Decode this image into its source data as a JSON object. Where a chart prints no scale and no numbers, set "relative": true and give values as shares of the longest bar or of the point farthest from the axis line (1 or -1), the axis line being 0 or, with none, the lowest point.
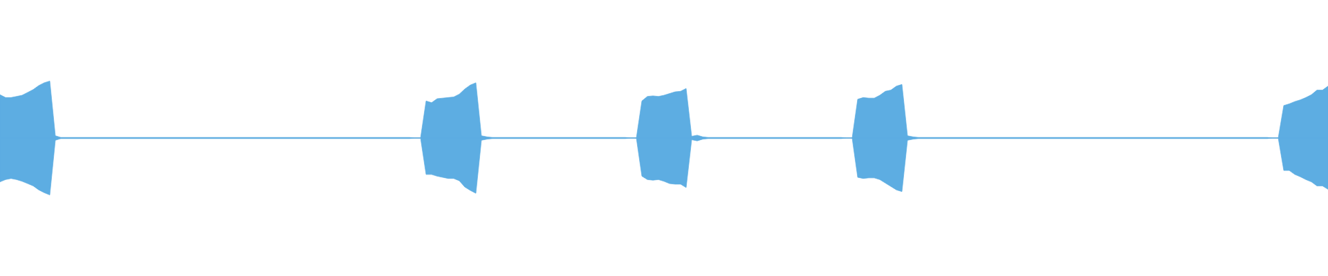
{
  "chart_data": {
    "type": "area",
    "relative": true,
    "categories": [
      null,
      null,
      null,
      null,
      null,
      null,
      null,
      null,
      null,
      null,
      null,
      null,
      null,
      null,
      null,
      null,
      null,
      null,
      null,
      null,
      null,
      null,
      null,
      null,
      null,
      null,
      null,
      null,
      null,
      null,
      null,
      null,
      null,
      null,
      null,
      null,
      null,
      null,
      null,
      null,
      null,
      null,
      null,
      null,
      null,
      null,
      null,
      null,
      null,
      null,
      null,
      null,
      null,
      null,
      null,
      null,
      null,
      null,
      null,
      null,
      null,
      null,
      null,
      null,
      null,
      null,
      null,
      null,
      null,
      null,
      null,
      null,
      null,
      null,
      null,
      null,
      null,
      null,
      null,
      null,
      null,
      null,
      null,
      null,
      null,
      null,
      null,
      null,
      null,
      null,
      null,
      null,
      null,
      null,
      null,
      null,
      null,
      null,
      null,
      null,
      null,
      null,
      null,
      null,
      null,
      null,
      null,
      null,
      null,
      null,
      null,
      null,
      null,
      null,
      null,
      null,
      null,
      null,
      null,
      null,
      null,
      null,
      null,
      null,
      null,
      null,
      null,
      null,
      null,
      null,
      null,
      null,
      null,
      null,
      null,
      null,
      null,
      null,
      null,
      null,
      null,
      null,
      null,
      null,
      null,
      null,
      null,
      null,
      null,
      null,
      null,
      null,
      null,
      null,
      null,
      null,
      null,
      null,
      null,
      null,
      null,
      null,
      null,
      null,
      null,
      null,
      null,
      null,
      null,
      null,
      null,
      null,
      null,
      null,
      null,
      null,
      null,
      null,
      null,
      null,
      null,
      null,
      null,
      null,
      null,
      null,
      null,
      null,
      null,
      null,
      null,
      null,
      null,
      null,
      null,
      null,
      null,
      null,
      null,
      null,
      null,
      null,
      null,
      null,
      null,
      null,
      null,
      null,
      null,
      null,
      null,
      null,
      null,
      null,
      null,
      null,
      null,
      null,
      null,
      null,
      null,
      null,
      null,
      null,
      null,
      null,
      null,
      null,
      null,
      null,
      null,
      null,
      null,
      null,
      null,
      null,
      null,
      null,
      null,
      null,
      null
    ],
    "series": [
      {
        "color": "#5dade2",
        "values": [
          0.76,
          0.71,
          0.71,
          0.73,
          0.75,
          0.8,
          0.85,
          0.92,
          0.97,
          1,
          0.04,
          0.01,
          0.01,
          0.01,
          0.01,
          0.01,
          0.01,
          0.01,
          0.01,
          0.01,
          0.01,
          0.01,
          0.01,
          0.01,
          0.01,
          0.01,
          0.01,
          0.01,
          0.01,
          0.01,
          0.01,
          0.01,
          0.01,
          0.01,
          0.01,
          0.01,
          0.01,
          0.01,
          0.01,
          0.01,
          0.01,
          0.01,
          0.01,
          0.01,
          0.01,
          0.01,
          0.01,
          0.01,
          0.01,
          0.01,
          0.01,
          0.01,
          0.01,
          0.01,
          0.01,
          0.01,
          0.01,
          0.01,
          0.01,
          0.01,
          0.01,
          0.01,
          0.01,
          0.01,
          0.01,
          0.01,
          0.01,
          0.01,
          0.01,
          0.01,
          0.01,
          0.01,
          0.01,
          0.01,
          0.01,
          0,
          0,
          0.65,
          0.62,
          0.69,
          0.7,
          0.71,
          0.72,
          0.77,
          0.86,
          0.93,
          0.97,
          0.04,
          0.02,
          0.01,
          0.01,
          0.01,
          0.01,
          0.01,
          0.01,
          0.01,
          0.01,
          0.01,
          0.01,
          0.01,
          0.01,
          0.01,
          0.01,
          0.01,
          0.01,
          0.01,
          0.01,
          0.01,
          0.01,
          0.01,
          0.01,
          0.01,
          0.01,
          0.01,
          0,
          0,
          0.65,
          0.73,
          0.74,
          0.73,
          0.75,
          0.78,
          0.81,
          0.82,
          0.87,
          0.03,
          0.05,
          0.02,
          0.01,
          0.01,
          0.01,
          0.01,
          0.01,
          0.01,
          0.01,
          0.01,
          0.01,
          0.01,
          0.01,
          0.01,
          0.01,
          0.01,
          0.01,
          0.01,
          0.01,
          0.01,
          0.01,
          0.01,
          0.01,
          0.01,
          0.01,
          0.01,
          0.01,
          0,
          0,
          0.68,
          0.71,
          0.7,
          0.7,
          0.75,
          0.82,
          0.84,
          0.91,
          0.94,
          0.04,
          0.02,
          0.01,
          0.01,
          0.01,
          0.01,
          0.01,
          0.01,
          0.01,
          0.01,
          0.01,
          0.01,
          0.01,
          0.01,
          0.01,
          0.01,
          0.01,
          0.01,
          0.01,
          0.01,
          0.01,
          0.01,
          0.01,
          0.01,
          0.01,
          0.01,
          0.01,
          0.01,
          0.01,
          0.01,
          0.01,
          0.01,
          0.01,
          0.01,
          0.01,
          0.01,
          0.01,
          0.01,
          0.01,
          0.01,
          0.01,
          0.01,
          0.01,
          0.01,
          0.01,
          0.01,
          0.01,
          0.01,
          0.01,
          0.01,
          0.01,
          0.01,
          0.01,
          0.01,
          0.01,
          0.01,
          0.01,
          0.01,
          0.01,
          0.01,
          0.01,
          0.01,
          0.01,
          0.01,
          0.01,
          0.01,
          0,
          0,
          0.57,
          0.6,
          0.64,
          0.67,
          0.71,
          0.76,
          0.84,
          0.84,
          0.91
        ]
      },
      {
        "color": "#5dade2",
        "values": [
          -0.77,
          -0.73,
          -0.71,
          -0.73,
          -0.76,
          -0.8,
          -0.84,
          -0.91,
          -0.96,
          -1,
          -0.04,
          -0.01,
          -0.01,
          -0.01,
          -0.01,
          -0.01,
          -0.01,
          -0.01,
          -0.01,
          -0.01,
          -0.01,
          -0.01,
          -0.01,
          -0.01,
          -0.01,
          -0.01,
          -0.01,
          -0.01,
          -0.01,
          -0.01,
          -0.01,
          -0.01,
          -0.01,
          -0.01,
          -0.01,
          -0.01,
          -0.01,
          -0.01,
          -0.01,
          -0.01,
          -0.01,
          -0.01,
          -0.01,
          -0.01,
          -0.01,
          -0.01,
          -0.01,
          -0.01,
          -0.01,
          -0.01,
          -0.01,
          -0.01,
          -0.01,
          -0.01,
          -0.01,
          -0.01,
          -0.01,
          -0.01,
          -0.01,
          -0.01,
          -0.01,
          -0.01,
          -0.01,
          -0.01,
          -0.01,
          -0.01,
          -0.01,
          -0.01,
          -0.01,
          -0.01,
          -0.01,
          -0.01,
          -0.01,
          -0.01,
          -0.01,
          0,
          0,
          -0.64,
          -0.64,
          -0.67,
          -0.69,
          -0.71,
          -0.71,
          -0.75,
          -0.86,
          -0.92,
          -0.97,
          -0.04,
          -0.02,
          -0.01,
          -0.01,
          -0.01,
          -0.01,
          -0.01,
          -0.01,
          -0.01,
          -0.01,
          -0.01,
          -0.01,
          -0.01,
          -0.01,
          -0.01,
          -0.01,
          -0.01,
          -0.01,
          -0.01,
          -0.01,
          -0.01,
          -0.01,
          -0.01,
          -0.01,
          -0.01,
          -0.01,
          -0.01,
          0,
          0,
          -0.67,
          -0.73,
          -0.74,
          -0.73,
          -0.76,
          -0.8,
          -0.81,
          -0.81,
          -0.87,
          -0.03,
          -0.05,
          -0.02,
          -0.01,
          -0.01,
          -0.01,
          -0.01,
          -0.01,
          -0.01,
          -0.01,
          -0.01,
          -0.01,
          -0.01,
          -0.01,
          -0.01,
          -0.01,
          -0.01,
          -0.01,
          -0.01,
          -0.01,
          -0.01,
          -0.01,
          -0.01,
          -0.01,
          -0.01,
          -0.01,
          -0.01,
          -0.01,
          0,
          0,
          -0.69,
          -0.71,
          -0.7,
          -0.7,
          -0.73,
          -0.79,
          -0.85,
          -0.91,
          -0.94,
          -0.04,
          -0.02,
          -0.01,
          -0.01,
          -0.01,
          -0.01,
          -0.01,
          -0.01,
          -0.01,
          -0.01,
          -0.01,
          -0.01,
          -0.01,
          -0.01,
          -0.01,
          -0.01,
          -0.01,
          -0.01,
          -0.01,
          -0.01,
          -0.01,
          -0.01,
          -0.01,
          -0.01,
          -0.01,
          -0.01,
          -0.01,
          -0.01,
          -0.01,
          -0.01,
          -0.01,
          -0.01,
          -0.01,
          -0.01,
          -0.01,
          -0.01,
          -0.01,
          -0.01,
          -0.01,
          -0.01,
          -0.01,
          -0.01,
          -0.01,
          -0.01,
          -0.01,
          -0.01,
          -0.01,
          -0.01,
          -0.01,
          -0.01,
          -0.01,
          -0.01,
          -0.01,
          -0.01,
          -0.01,
          -0.01,
          -0.01,
          -0.01,
          -0.01,
          -0.01,
          -0.01,
          -0.01,
          -0.01,
          -0.01,
          -0.01,
          -0.01,
          0,
          0,
          -0.57,
          -0.57,
          -0.64,
          -0.68,
          -0.73,
          -0.77,
          -0.84,
          -0.84,
          -0.9
        ]
      }
    ]
  }
}
